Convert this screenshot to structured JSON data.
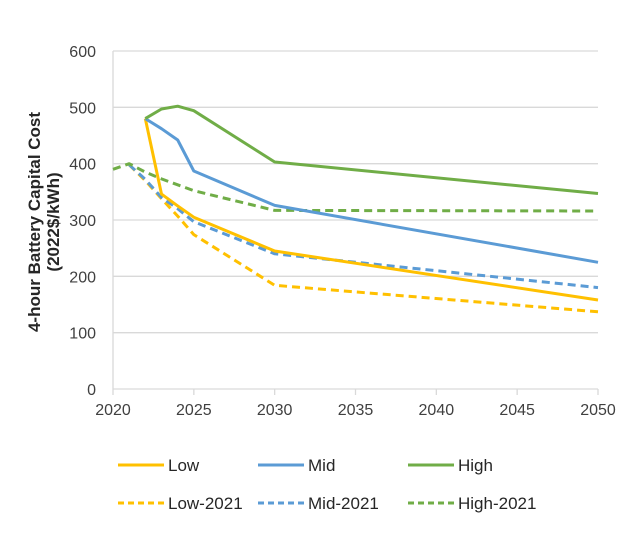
{
  "chart_data": {
    "type": "line",
    "title": "",
    "xlabel": "",
    "ylabel": [
      "4-hour Battery Capital Cost",
      "(2022$/kWh)"
    ],
    "xlim": [
      2020,
      2050
    ],
    "ylim": [
      0,
      600
    ],
    "x_ticks": [
      "2020",
      "2025",
      "2030",
      "2035",
      "2040",
      "2045",
      "2050"
    ],
    "y_ticks": [
      "0",
      "100",
      "200",
      "300",
      "400",
      "500",
      "600"
    ],
    "grid": "horizontal",
    "legend_position": "bottom",
    "series": [
      {
        "name": "Low",
        "color": "#FFC000",
        "dashed": false,
        "x": [
          2022,
          2023,
          2024,
          2025,
          2030,
          2050
        ],
        "y": [
          480,
          346,
          325,
          305,
          245,
          158
        ]
      },
      {
        "name": "Mid",
        "color": "#5B9BD5",
        "dashed": false,
        "x": [
          2022,
          2023,
          2024,
          2025,
          2030,
          2050
        ],
        "y": [
          480,
          462,
          442,
          387,
          326,
          225
        ]
      },
      {
        "name": "High",
        "color": "#70AD47",
        "dashed": false,
        "x": [
          2022,
          2023,
          2024,
          2025,
          2030,
          2050
        ],
        "y": [
          480,
          497,
          502,
          494,
          403,
          347
        ]
      },
      {
        "name": "Low-2021",
        "color": "#FFC000",
        "dashed": true,
        "x": [
          2021,
          2022,
          2023,
          2024,
          2025,
          2030,
          2050
        ],
        "y": [
          398,
          370,
          338,
          307,
          274,
          184,
          137
        ]
      },
      {
        "name": "Mid-2021",
        "color": "#5B9BD5",
        "dashed": true,
        "x": [
          2021,
          2022,
          2023,
          2024,
          2025,
          2030,
          2050
        ],
        "y": [
          398,
          372,
          340,
          320,
          297,
          240,
          180
        ]
      },
      {
        "name": "High-2021",
        "color": "#70AD47",
        "dashed": true,
        "x": [
          2020,
          2021,
          2022,
          2023,
          2025,
          2030,
          2050
        ],
        "y": [
          390,
          400,
          385,
          373,
          352,
          317,
          316
        ]
      }
    ]
  }
}
